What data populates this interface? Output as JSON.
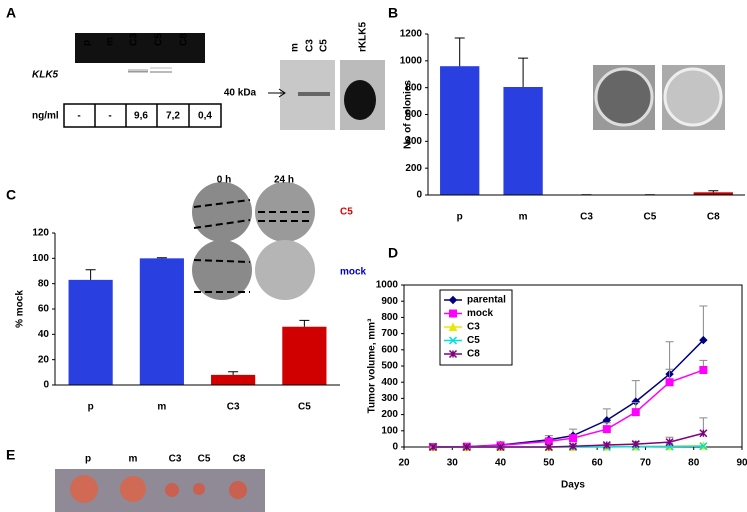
{
  "panel_labels": [
    "A",
    "B",
    "C",
    "D",
    "E"
  ],
  "panel_a": {
    "gel_lanes": [
      "p",
      "m",
      "C3",
      "C5",
      "C8"
    ],
    "gene": "KLK5",
    "conc_label": "ng/ml",
    "conc_values": [
      "-",
      "-",
      "9,6",
      "7,2",
      "0,4"
    ],
    "blot_lanes": [
      "m",
      "C3",
      "C5"
    ],
    "blot_ref": "rKLK5",
    "marker": "40 kDa"
  },
  "panel_c_images": {
    "times": [
      "0 h",
      "24 h"
    ],
    "rows": [
      "C5",
      "mock"
    ]
  },
  "panel_e": {
    "labels": [
      "p",
      "m",
      "C3",
      "C5",
      "C8"
    ]
  },
  "chart_data": [
    {
      "type": "bar",
      "ylabel": "No of colonies",
      "categories": [
        "p",
        "m",
        "C3",
        "C5",
        "C8"
      ],
      "values": [
        960,
        805,
        2,
        2,
        20
      ],
      "errors": [
        210,
        215,
        0,
        0,
        12
      ],
      "colors": [
        "#2a3fe0",
        "#2a3fe0",
        "#c00000",
        "#c00000",
        "#c00000"
      ],
      "ylim": [
        0,
        1200
      ],
      "yticks": [
        0,
        200,
        400,
        600,
        800,
        1000,
        1200
      ]
    },
    {
      "type": "bar",
      "ylabel": "% mock",
      "categories": [
        "p",
        "m",
        "C3",
        "C5"
      ],
      "values": [
        83,
        100,
        8,
        46
      ],
      "errors": [
        8,
        0.5,
        2.5,
        5
      ],
      "colors": [
        "#2a3fe0",
        "#2a3fe0",
        "#d00000",
        "#d00000"
      ],
      "ylim": [
        0,
        120
      ],
      "yticks": [
        0,
        20,
        40,
        60,
        80,
        100,
        120
      ]
    },
    {
      "type": "line",
      "xlabel": "Days",
      "ylabel": "Tumor volume, mm³",
      "x": [
        26,
        33,
        40,
        50,
        55,
        62,
        68,
        75,
        82
      ],
      "series": [
        {
          "name": "parental",
          "color": "#000080",
          "marker": "diamond",
          "values": [
            0,
            2,
            12,
            45,
            70,
            165,
            280,
            450,
            660
          ],
          "errors": [
            0,
            0,
            5,
            25,
            40,
            70,
            130,
            200,
            210
          ]
        },
        {
          "name": "mock",
          "color": "#ff00ff",
          "marker": "square",
          "values": [
            0,
            2,
            10,
            35,
            55,
            110,
            215,
            400,
            475
          ],
          "errors": [
            0,
            0,
            5,
            15,
            20,
            40,
            60,
            80,
            60
          ]
        },
        {
          "name": "C3",
          "color": "#e8e800",
          "marker": "triangle",
          "values": [
            0,
            0,
            0,
            0,
            0,
            2,
            3,
            5,
            8
          ]
        },
        {
          "name": "C5",
          "color": "#00e0e0",
          "marker": "x",
          "values": [
            0,
            0,
            0,
            0,
            0,
            0,
            2,
            3,
            5
          ]
        },
        {
          "name": "C8",
          "color": "#800080",
          "marker": "star",
          "values": [
            0,
            0,
            0,
            0,
            5,
            12,
            18,
            30,
            85
          ],
          "errors": [
            0,
            0,
            0,
            0,
            5,
            8,
            15,
            30,
            95
          ]
        }
      ],
      "xlim": [
        20,
        90
      ],
      "xticks": [
        20,
        30,
        40,
        50,
        60,
        70,
        80,
        90
      ],
      "ylim": [
        0,
        1000
      ],
      "yticks": [
        0,
        100,
        200,
        300,
        400,
        500,
        600,
        700,
        800,
        900,
        1000
      ],
      "legend": "upper-left"
    }
  ]
}
